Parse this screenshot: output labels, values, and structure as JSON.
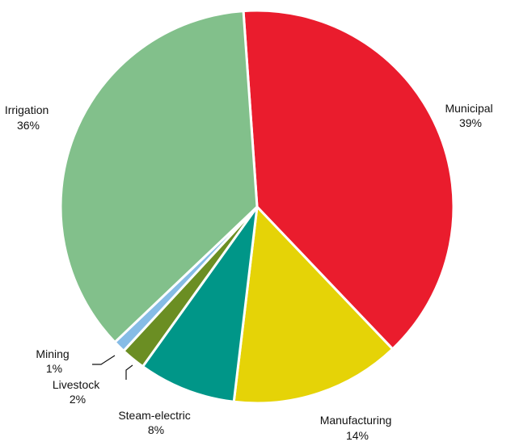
{
  "chart_data": {
    "type": "pie",
    "title": "",
    "slices": [
      {
        "name": "Municipal",
        "value": 39,
        "label": "39%",
        "color": "#ea1c2d"
      },
      {
        "name": "Manufacturing",
        "value": 14,
        "label": "14%",
        "color": "#e5d307"
      },
      {
        "name": "Steam-electric",
        "value": 8,
        "label": "8%",
        "color": "#009688"
      },
      {
        "name": "Livestock",
        "value": 2,
        "label": "2%",
        "color": "#6b8e23"
      },
      {
        "name": "Mining",
        "value": 1,
        "label": "1%",
        "color": "#86bce6"
      },
      {
        "name": "Irrigation",
        "value": 36,
        "label": "36%",
        "color": "#82c08b"
      }
    ],
    "legend": "none",
    "label_placement": "outside with leader lines for small slices"
  }
}
